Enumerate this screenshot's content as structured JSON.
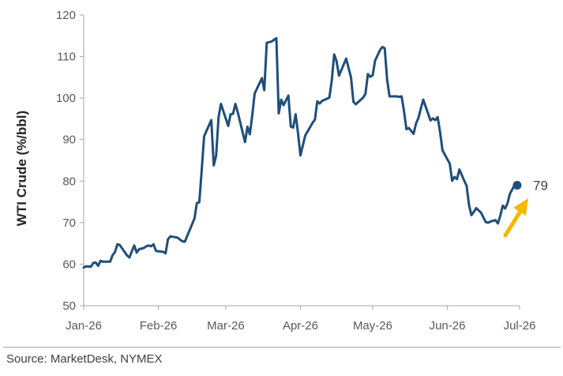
{
  "chart_data": {
    "type": "line",
    "title": "",
    "xlabel": "",
    "ylabel": "WTI Crude (%/bbl)",
    "ylim": [
      50,
      120
    ],
    "yticks": [
      50,
      60,
      70,
      80,
      90,
      100,
      110,
      120
    ],
    "xlim": [
      "2026-01-01",
      "2026-07-01"
    ],
    "xticks": [
      {
        "date": "2026-01-01",
        "label": "Jan-26"
      },
      {
        "date": "2026-02-01",
        "label": "Feb-26"
      },
      {
        "date": "2026-03-01",
        "label": "Mar-26"
      },
      {
        "date": "2026-04-01",
        "label": "Apr-26"
      },
      {
        "date": "2026-05-01",
        "label": "May-26"
      },
      {
        "date": "2026-06-01",
        "label": "Jun-26"
      },
      {
        "date": "2026-07-01",
        "label": "Jul-26"
      }
    ],
    "grid": false,
    "legend": "none",
    "line_color": "#1f4e79",
    "annotation": {
      "text": "79",
      "arrow_color": "#f5b800",
      "value": 79
    },
    "series": [
      {
        "values": [
          [
            "2026-01-01",
            59.2
          ],
          [
            "2026-01-02",
            59.5
          ],
          [
            "2026-01-04",
            59.4
          ],
          [
            "2026-01-05",
            60.3
          ],
          [
            "2026-01-06",
            60.4
          ],
          [
            "2026-01-07",
            59.6
          ],
          [
            "2026-01-08",
            60.8
          ],
          [
            "2026-01-09",
            60.6
          ],
          [
            "2026-01-12",
            60.6
          ],
          [
            "2026-01-13",
            62.2
          ],
          [
            "2026-01-14",
            62.9
          ],
          [
            "2026-01-15",
            64.8
          ],
          [
            "2026-01-16",
            64.6
          ],
          [
            "2026-01-19",
            62.1
          ],
          [
            "2026-01-20",
            61.6
          ],
          [
            "2026-01-21",
            63.1
          ],
          [
            "2026-01-22",
            64.5
          ],
          [
            "2026-01-23",
            62.8
          ],
          [
            "2026-01-24",
            63.6
          ],
          [
            "2026-01-26",
            63.9
          ],
          [
            "2026-01-27",
            64.3
          ],
          [
            "2026-01-28",
            64.5
          ],
          [
            "2026-01-29",
            64.3
          ],
          [
            "2026-01-30",
            64.8
          ],
          [
            "2026-01-31",
            63.2
          ],
          [
            "2026-02-01",
            63.1
          ],
          [
            "2026-02-03",
            63.0
          ],
          [
            "2026-02-04",
            62.6
          ],
          [
            "2026-02-05",
            66.0
          ],
          [
            "2026-02-06",
            66.7
          ],
          [
            "2026-02-09",
            66.4
          ],
          [
            "2026-02-10",
            65.9
          ],
          [
            "2026-02-11",
            65.5
          ],
          [
            "2026-02-12",
            65.4
          ],
          [
            "2026-02-13",
            66.8
          ],
          [
            "2026-02-16",
            71.0
          ],
          [
            "2026-02-17",
            74.7
          ],
          [
            "2026-02-18",
            74.9
          ],
          [
            "2026-02-19",
            82.5
          ],
          [
            "2026-02-20",
            90.8
          ],
          [
            "2026-02-23",
            94.7
          ],
          [
            "2026-02-24",
            83.8
          ],
          [
            "2026-02-25",
            86.1
          ],
          [
            "2026-02-26",
            95.4
          ],
          [
            "2026-02-27",
            98.6
          ],
          [
            "2026-03-02",
            93.3
          ],
          [
            "2026-03-03",
            96.1
          ],
          [
            "2026-03-04",
            96.2
          ],
          [
            "2026-03-05",
            98.6
          ],
          [
            "2026-03-06",
            96.5
          ],
          [
            "2026-03-09",
            89.4
          ],
          [
            "2026-03-10",
            93.1
          ],
          [
            "2026-03-11",
            91.3
          ],
          [
            "2026-03-12",
            95.9
          ],
          [
            "2026-03-13",
            101.1
          ],
          [
            "2026-03-16",
            104.8
          ],
          [
            "2026-03-17",
            101.9
          ],
          [
            "2026-03-18",
            113.3
          ],
          [
            "2026-03-20",
            113.6
          ],
          [
            "2026-03-21",
            114.0
          ],
          [
            "2026-03-22",
            114.4
          ],
          [
            "2026-03-23",
            96.3
          ],
          [
            "2026-03-24",
            99.6
          ],
          [
            "2026-03-25",
            98.3
          ],
          [
            "2026-03-27",
            100.6
          ],
          [
            "2026-03-28",
            93.1
          ],
          [
            "2026-03-29",
            92.9
          ],
          [
            "2026-03-30",
            96.1
          ],
          [
            "2026-03-31",
            91.6
          ],
          [
            "2026-04-01",
            86.2
          ],
          [
            "2026-04-02",
            88.6
          ],
          [
            "2026-04-03",
            91.0
          ],
          [
            "2026-04-06",
            94.0
          ],
          [
            "2026-04-07",
            94.8
          ],
          [
            "2026-04-08",
            99.2
          ],
          [
            "2026-04-09",
            98.7
          ],
          [
            "2026-04-10",
            99.3
          ],
          [
            "2026-04-13",
            100.1
          ],
          [
            "2026-04-14",
            104.1
          ],
          [
            "2026-04-15",
            110.5
          ],
          [
            "2026-04-16",
            108.9
          ],
          [
            "2026-04-17",
            105.4
          ],
          [
            "2026-04-20",
            109.5
          ],
          [
            "2026-04-22",
            105.0
          ],
          [
            "2026-04-23",
            99.1
          ],
          [
            "2026-04-24",
            98.5
          ],
          [
            "2026-04-27",
            100.1
          ],
          [
            "2026-04-28",
            101.0
          ],
          [
            "2026-04-29",
            105.8
          ],
          [
            "2026-04-30",
            105.1
          ],
          [
            "2026-05-01",
            105.5
          ],
          [
            "2026-05-02",
            109.0
          ],
          [
            "2026-05-04",
            111.5
          ],
          [
            "2026-05-05",
            112.3
          ],
          [
            "2026-05-06",
            112.0
          ],
          [
            "2026-05-07",
            104.4
          ],
          [
            "2026-05-08",
            100.4
          ],
          [
            "2026-05-11",
            100.4
          ],
          [
            "2026-05-12",
            100.3
          ],
          [
            "2026-05-13",
            100.4
          ],
          [
            "2026-05-14",
            96.9
          ],
          [
            "2026-05-15",
            92.5
          ],
          [
            "2026-05-16",
            92.8
          ],
          [
            "2026-05-18",
            91.4
          ],
          [
            "2026-05-19",
            93.9
          ],
          [
            "2026-05-20",
            95.2
          ],
          [
            "2026-05-21",
            97.5
          ],
          [
            "2026-05-22",
            99.6
          ],
          [
            "2026-05-25",
            94.6
          ],
          [
            "2026-05-26",
            95.1
          ],
          [
            "2026-05-27",
            94.7
          ],
          [
            "2026-05-28",
            95.4
          ],
          [
            "2026-05-29",
            91.7
          ],
          [
            "2026-05-30",
            87.4
          ],
          [
            "2026-06-02",
            84.2
          ],
          [
            "2026-06-03",
            80.1
          ],
          [
            "2026-06-04",
            81.0
          ],
          [
            "2026-06-05",
            80.5
          ],
          [
            "2026-06-06",
            82.8
          ],
          [
            "2026-06-08",
            80.1
          ],
          [
            "2026-06-09",
            78.9
          ],
          [
            "2026-06-10",
            74.2
          ],
          [
            "2026-06-11",
            71.8
          ],
          [
            "2026-06-12",
            72.6
          ],
          [
            "2026-06-13",
            73.5
          ],
          [
            "2026-06-15",
            72.4
          ],
          [
            "2026-06-16",
            71.2
          ],
          [
            "2026-06-17",
            70.1
          ],
          [
            "2026-06-18",
            70.0
          ],
          [
            "2026-06-19",
            70.3
          ],
          [
            "2026-06-21",
            70.6
          ],
          [
            "2026-06-22",
            69.8
          ],
          [
            "2026-06-23",
            71.7
          ],
          [
            "2026-06-24",
            74.1
          ],
          [
            "2026-06-25",
            73.4
          ],
          [
            "2026-06-26",
            74.7
          ],
          [
            "2026-06-27",
            77.0
          ],
          [
            "2026-06-29",
            79.1
          ],
          [
            "2026-06-30",
            79.0
          ]
        ]
      }
    ]
  },
  "source": "Source: MarketDesk, NYMEX"
}
